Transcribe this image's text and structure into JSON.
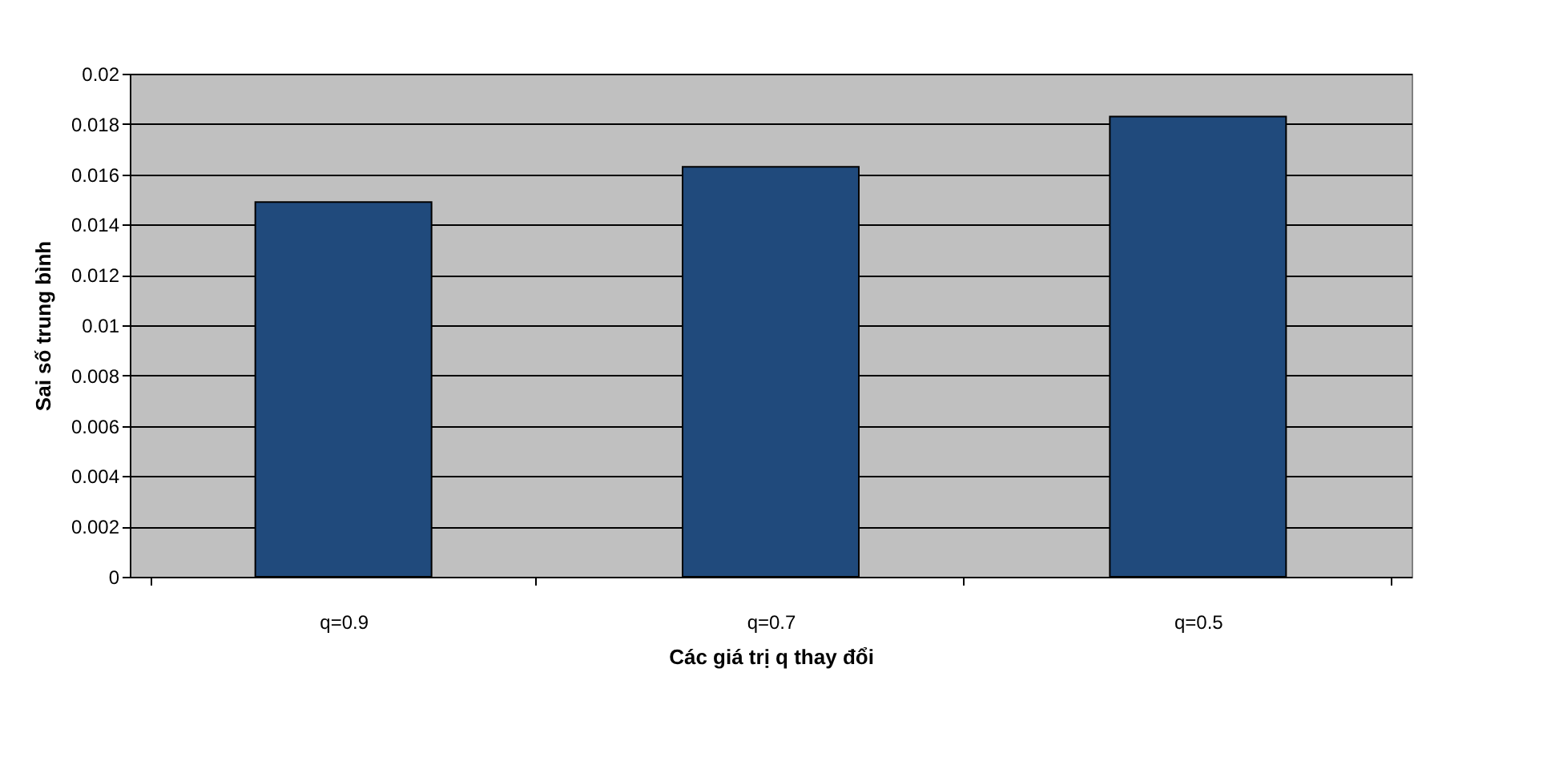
{
  "chart_data": {
    "type": "bar",
    "xlabel": "Các giá trị q thay đổi",
    "ylabel": "Sai số trung bình",
    "categories": [
      "q=0.9",
      "q=0.7",
      "q=0.5"
    ],
    "values": [
      0.0149,
      0.0163,
      0.0183
    ],
    "color": "#204a7c",
    "ylim": [
      0,
      0.02
    ],
    "yticks": [
      0,
      0.002,
      0.004,
      0.006,
      0.008,
      0.01,
      0.012,
      0.014,
      0.016,
      0.018,
      0.02
    ],
    "grid": "y"
  }
}
